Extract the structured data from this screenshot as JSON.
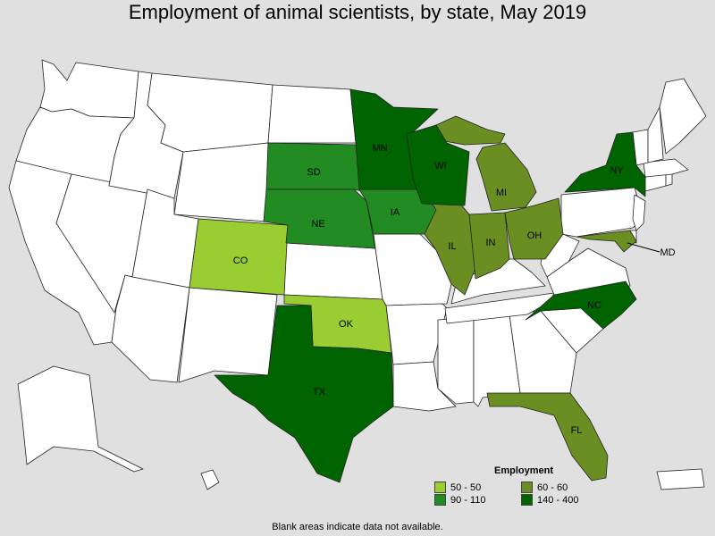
{
  "title": "Employment of animal scientists, by state, May 2019",
  "legend": {
    "title": "Employment",
    "items": [
      {
        "label": "50 - 50",
        "color": "#9acd32"
      },
      {
        "label": "60 - 60",
        "color": "#6b8e23"
      },
      {
        "label": "90 - 110",
        "color": "#228b22"
      },
      {
        "label": "140 - 400",
        "color": "#006400"
      }
    ]
  },
  "footnote": "Blank areas indicate data not available.",
  "map_data": {
    "colors": {
      "no_data": "#ffffff",
      "border": "#222222"
    },
    "states": [
      {
        "abbr": "CO",
        "range": "50 - 50"
      },
      {
        "abbr": "OK",
        "range": "50 - 50"
      },
      {
        "abbr": "MI",
        "range": "60 - 60"
      },
      {
        "abbr": "IL",
        "range": "60 - 60"
      },
      {
        "abbr": "IN",
        "range": "60 - 60"
      },
      {
        "abbr": "OH",
        "range": "60 - 60"
      },
      {
        "abbr": "FL",
        "range": "60 - 60"
      },
      {
        "abbr": "MD",
        "range": "60 - 60"
      },
      {
        "abbr": "SD",
        "range": "90 - 110"
      },
      {
        "abbr": "NE",
        "range": "90 - 110"
      },
      {
        "abbr": "IA",
        "range": "90 - 110"
      },
      {
        "abbr": "MN",
        "range": "140 - 400"
      },
      {
        "abbr": "WI",
        "range": "140 - 400"
      },
      {
        "abbr": "NY",
        "range": "140 - 400"
      },
      {
        "abbr": "NC",
        "range": "140 - 400"
      },
      {
        "abbr": "TX",
        "range": "140 - 400"
      }
    ]
  }
}
